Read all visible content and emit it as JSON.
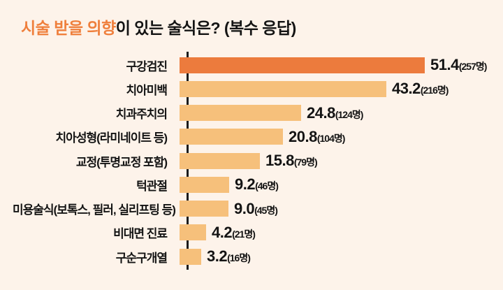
{
  "page": {
    "background": "#FDF3EA"
  },
  "title": {
    "highlight": "시술 받을 의향",
    "rest": "이 있는 술식은?",
    "suffix": " (복수 응답)"
  },
  "colors": {
    "title_highlight": "#EF7F3C",
    "bar_highlight": "#EC7B3D",
    "bar_default": "#F6C07B",
    "axis": "#1B1B1B",
    "text": "#141414"
  },
  "chart_data": {
    "type": "bar",
    "orientation": "horizontal",
    "title": "시술 받을 의향이 있는 술식은? (복수 응답)",
    "xlabel": "",
    "ylabel": "",
    "xlim": [
      0,
      55
    ],
    "grid": false,
    "legend": false,
    "highlight_index": 0,
    "count_unit": "명",
    "categories": [
      "구강검진",
      "치아미백",
      "치과주치의",
      "치아성형(라미네이트 등)",
      "교정(투명교정 포함)",
      "턱관절",
      "미용술식(보톡스, 필러, 실리프팅 등)",
      "비대면 진료",
      "구순구개열"
    ],
    "values": [
      51.4,
      43.2,
      24.8,
      20.8,
      15.8,
      9.2,
      9.0,
      4.2,
      3.2
    ],
    "value_labels": [
      "51.4",
      "43.2",
      "24.8",
      "20.8",
      "15.8",
      "9.2",
      "9.0",
      "4.2",
      "3.2"
    ],
    "counts": [
      257,
      216,
      124,
      104,
      79,
      46,
      45,
      21,
      16
    ],
    "count_labels": [
      "(257명)",
      "(216명)",
      "(124명)",
      "(104명)",
      "(79명)",
      "(46명)",
      "(45명)",
      "(21명)",
      "(16명)"
    ]
  }
}
